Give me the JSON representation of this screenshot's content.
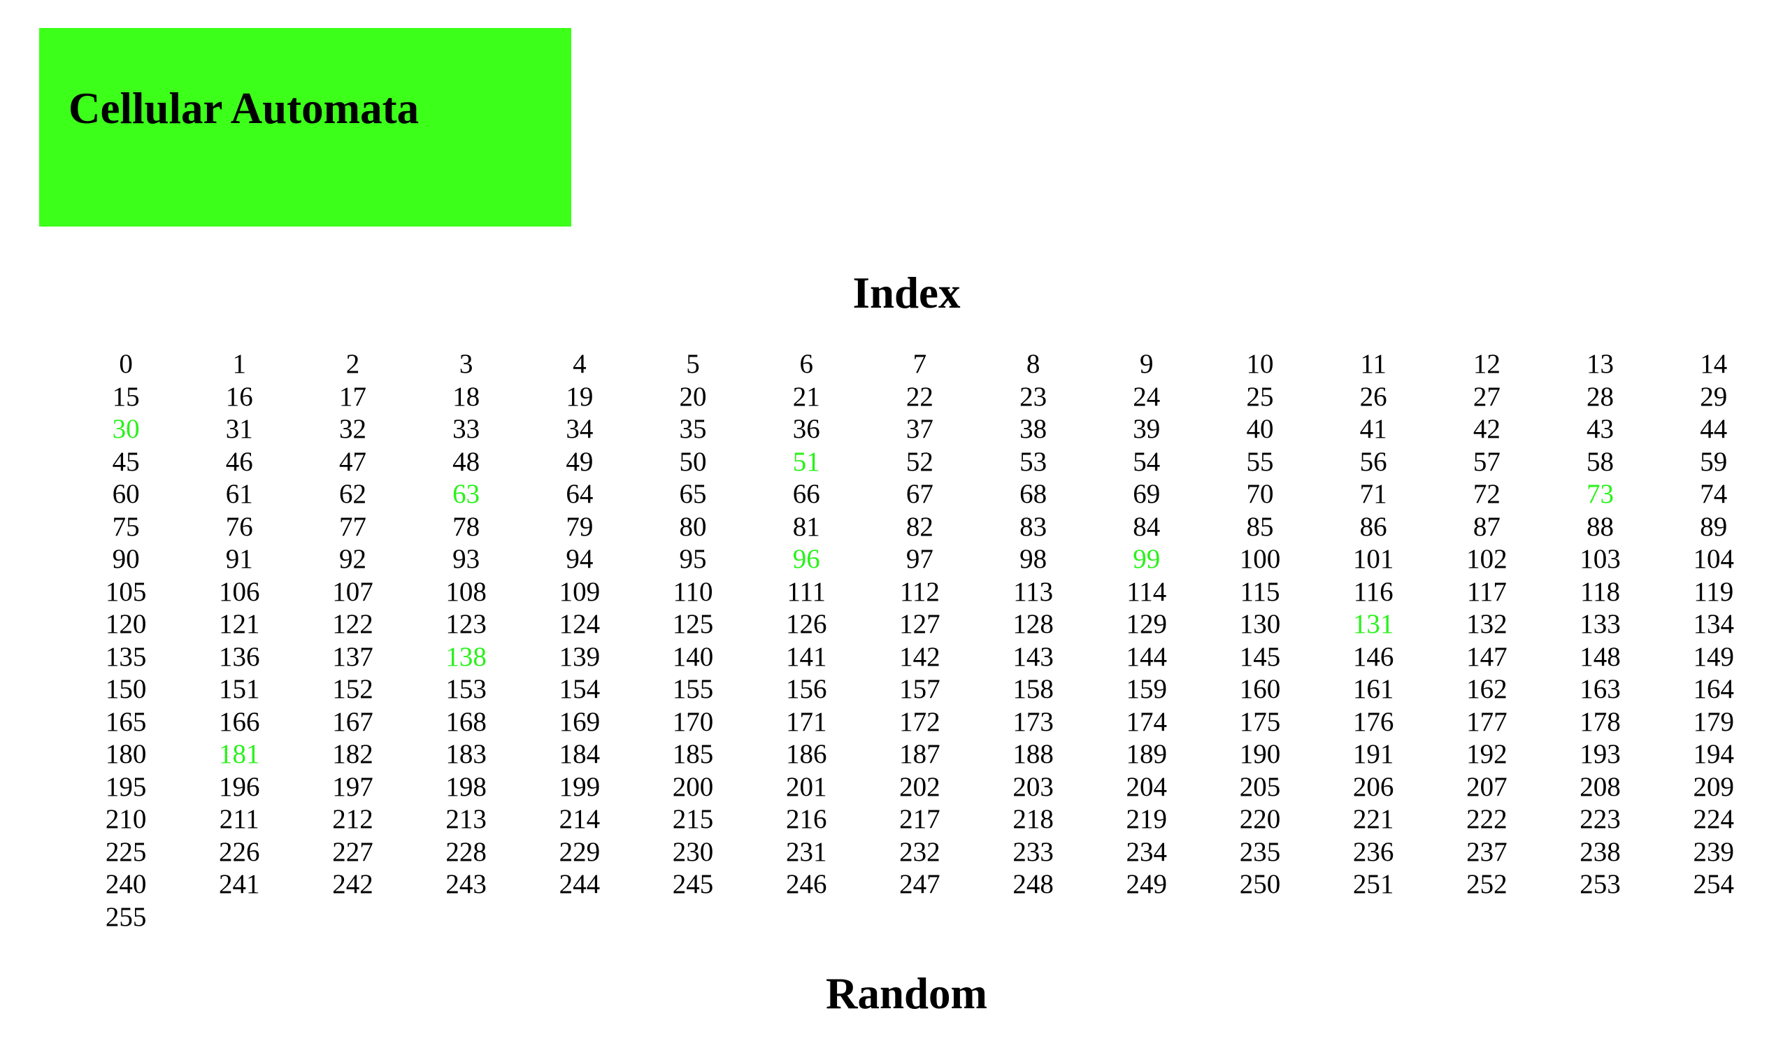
{
  "header": {
    "title": "Cellular Automata",
    "background_color": "#3cff1a"
  },
  "index_section": {
    "heading": "Index",
    "rule_numbers": [
      0,
      1,
      2,
      3,
      4,
      5,
      6,
      7,
      8,
      9,
      10,
      11,
      12,
      13,
      14,
      15,
      16,
      17,
      18,
      19,
      20,
      21,
      22,
      23,
      24,
      25,
      26,
      27,
      28,
      29,
      30,
      31,
      32,
      33,
      34,
      35,
      36,
      37,
      38,
      39,
      40,
      41,
      42,
      43,
      44,
      45,
      46,
      47,
      48,
      49,
      50,
      51,
      52,
      53,
      54,
      55,
      56,
      57,
      58,
      59,
      60,
      61,
      62,
      63,
      64,
      65,
      66,
      67,
      68,
      69,
      70,
      71,
      72,
      73,
      74,
      75,
      76,
      77,
      78,
      79,
      80,
      81,
      82,
      83,
      84,
      85,
      86,
      87,
      88,
      89,
      90,
      91,
      92,
      93,
      94,
      95,
      96,
      97,
      98,
      99,
      100,
      101,
      102,
      103,
      104,
      105,
      106,
      107,
      108,
      109,
      110,
      111,
      112,
      113,
      114,
      115,
      116,
      117,
      118,
      119,
      120,
      121,
      122,
      123,
      124,
      125,
      126,
      127,
      128,
      129,
      130,
      131,
      132,
      133,
      134,
      135,
      136,
      137,
      138,
      139,
      140,
      141,
      142,
      143,
      144,
      145,
      146,
      147,
      148,
      149,
      150,
      151,
      152,
      153,
      154,
      155,
      156,
      157,
      158,
      159,
      160,
      161,
      162,
      163,
      164,
      165,
      166,
      167,
      168,
      169,
      170,
      171,
      172,
      173,
      174,
      175,
      176,
      177,
      178,
      179,
      180,
      181,
      182,
      183,
      184,
      185,
      186,
      187,
      188,
      189,
      190,
      191,
      192,
      193,
      194,
      195,
      196,
      197,
      198,
      199,
      200,
      201,
      202,
      203,
      204,
      205,
      206,
      207,
      208,
      209,
      210,
      211,
      212,
      213,
      214,
      215,
      216,
      217,
      218,
      219,
      220,
      221,
      222,
      223,
      224,
      225,
      226,
      227,
      228,
      229,
      230,
      231,
      232,
      233,
      234,
      235,
      236,
      237,
      238,
      239,
      240,
      241,
      242,
      243,
      244,
      245,
      246,
      247,
      248,
      249,
      250,
      251,
      252,
      253,
      254,
      255
    ],
    "highlighted_rules": [
      30,
      51,
      63,
      73,
      96,
      99,
      131,
      138,
      181
    ],
    "link_color": "#000000",
    "highlight_color": "#29f21a"
  },
  "random_section": {
    "heading": "Random"
  }
}
